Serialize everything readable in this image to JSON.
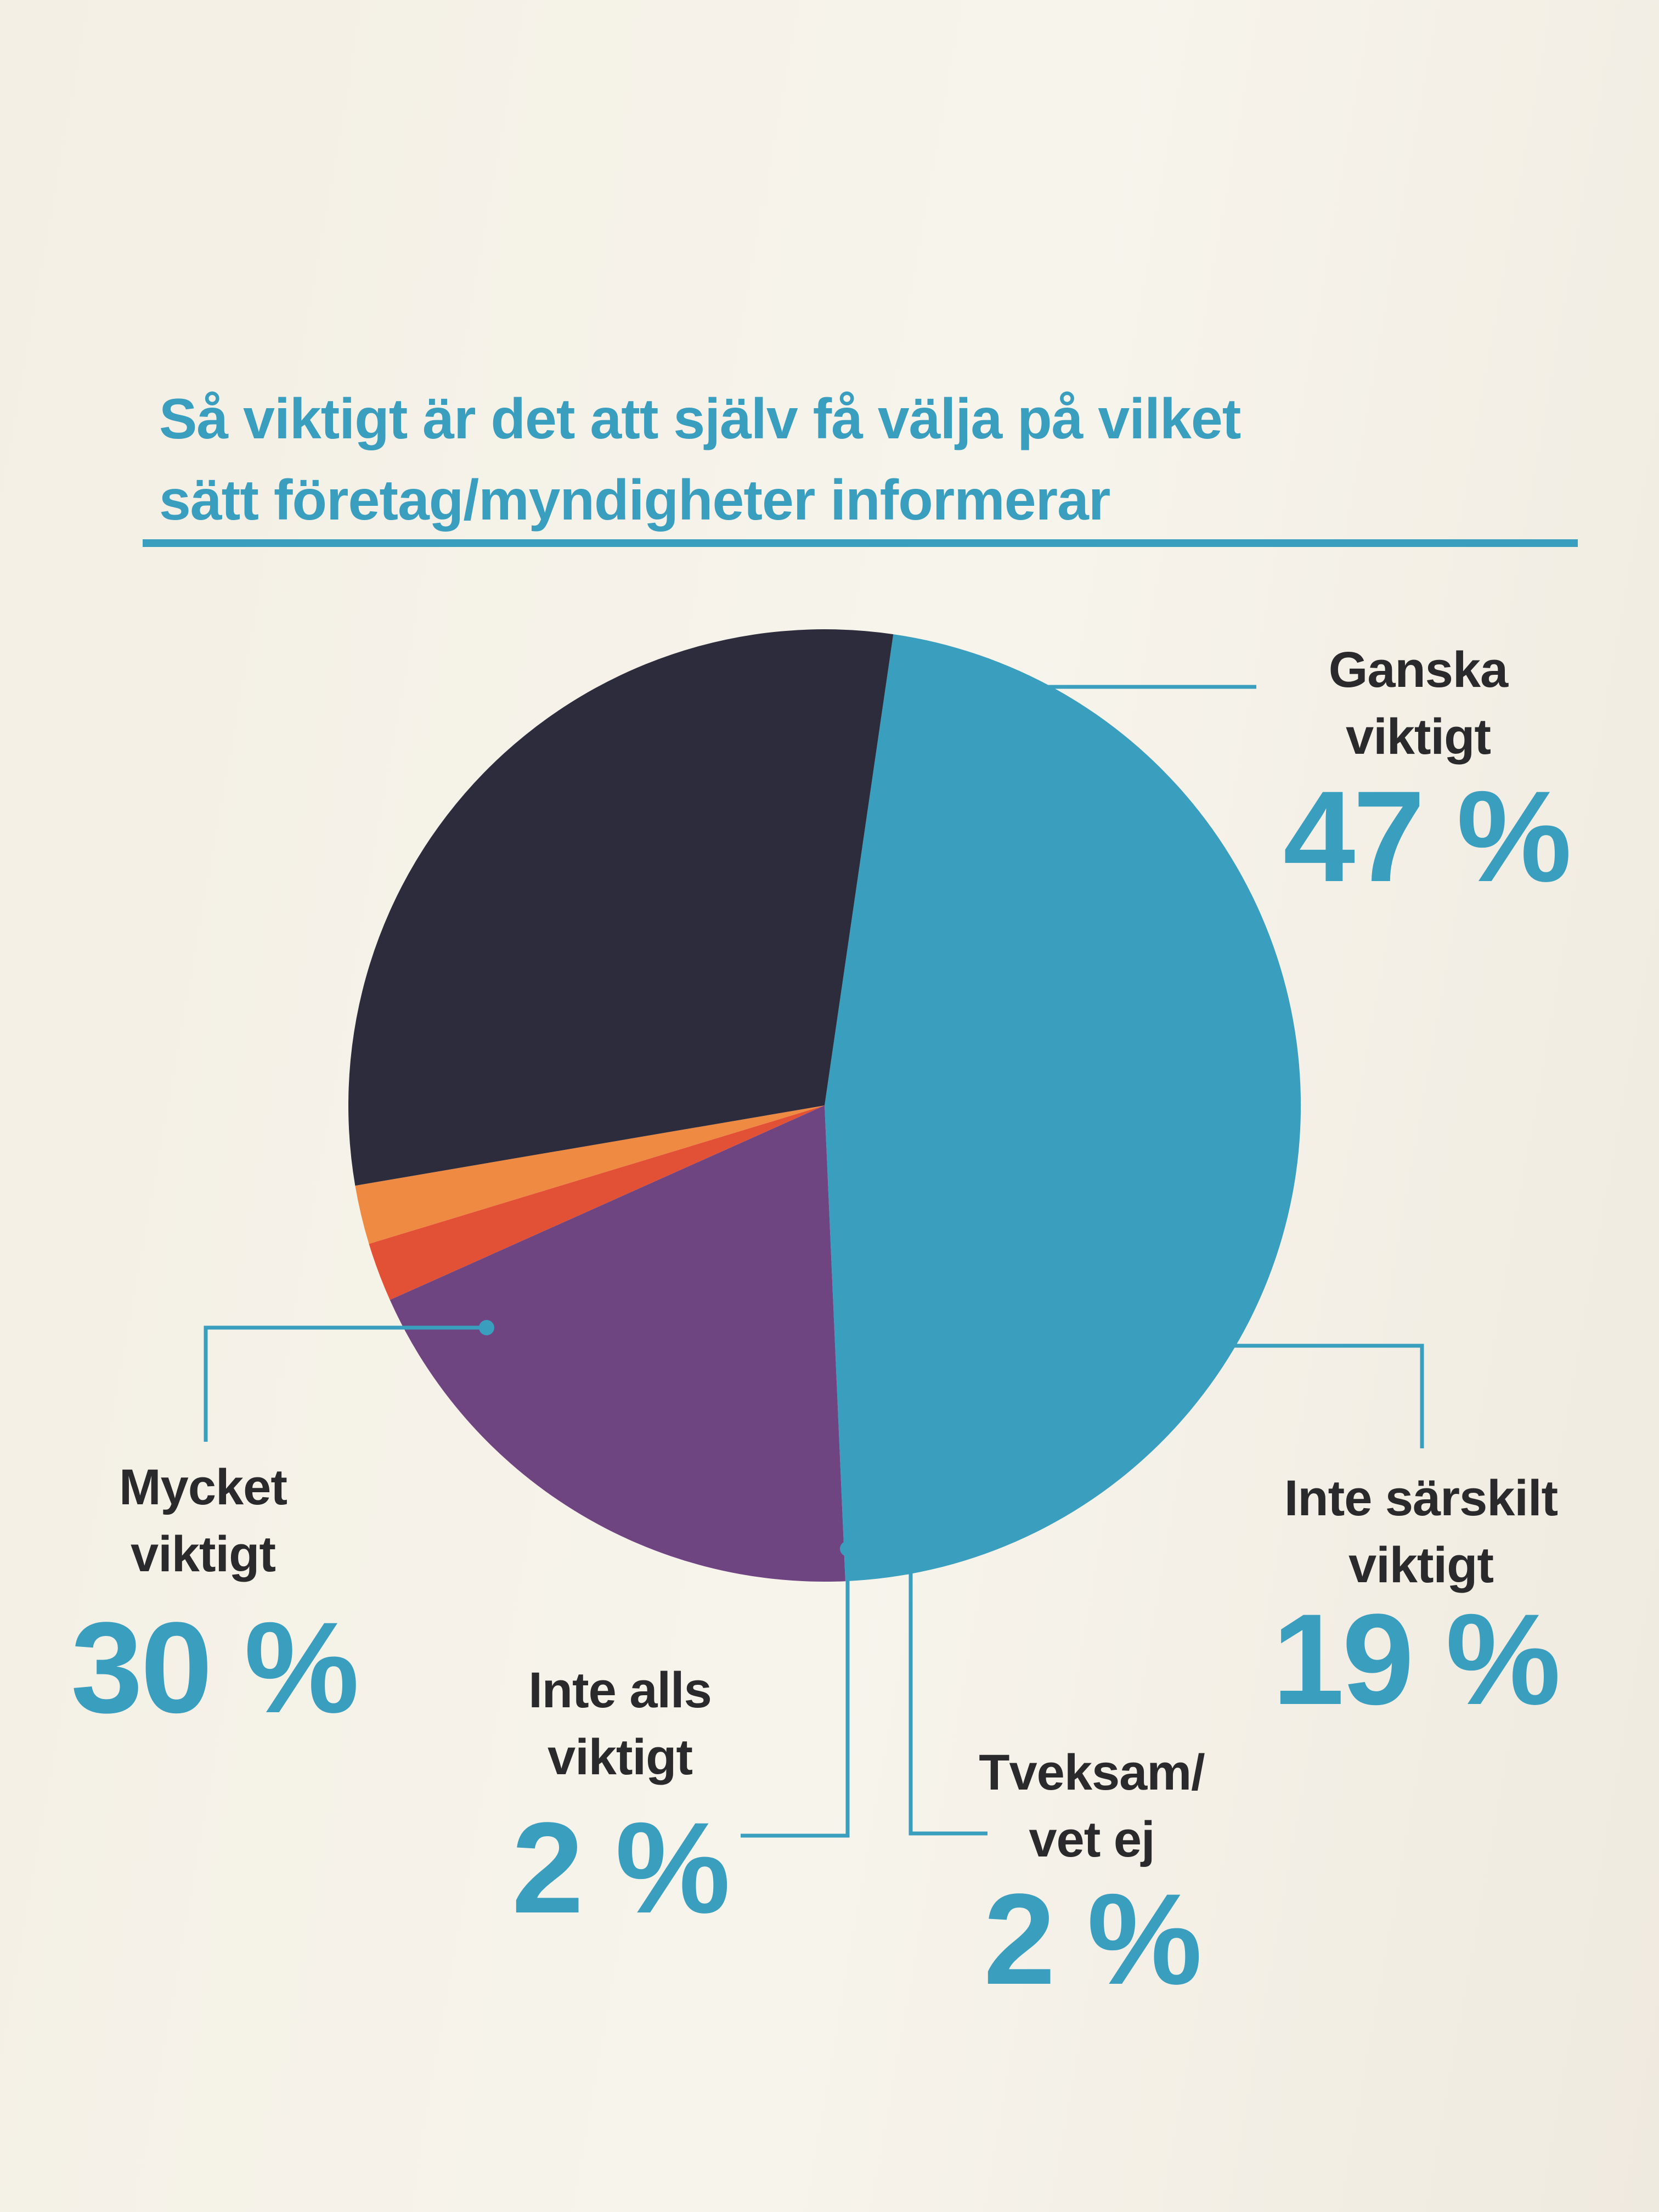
{
  "chart_data": {
    "type": "pie",
    "title_lines": [
      "Så viktigt är det att själv få välja på vilket",
      "sätt företag/myndigheter informerar"
    ],
    "start_angle_deg": 8.3,
    "slices": [
      {
        "name_lines": [
          "Ganska",
          "viktigt"
        ],
        "value": 47,
        "value_label": "47 %",
        "color": "#3a9ebf"
      },
      {
        "name_lines": [
          "Inte särskilt",
          "viktigt"
        ],
        "value": 19,
        "value_label": "19 %",
        "color": "#6e4580"
      },
      {
        "name_lines": [
          "Tveksam/",
          "vet ej"
        ],
        "value": 2,
        "value_label": "2 %",
        "color": "#e25136"
      },
      {
        "name_lines": [
          "Inte alls",
          "viktigt"
        ],
        "value": 2,
        "value_label": "2 %",
        "color": "#ef8a43"
      },
      {
        "name_lines": [
          "Mycket",
          "viktigt"
        ],
        "value": 30,
        "value_label": "30 %",
        "color": "#2c2c3c"
      }
    ],
    "leader_color": "#3a9ebf",
    "label_color": "#2a2a2c",
    "value_color": "#3a9ebf",
    "legend": "none"
  }
}
